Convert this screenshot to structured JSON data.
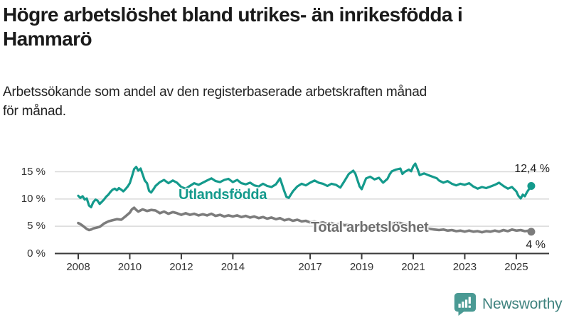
{
  "header": {
    "title_lines": [
      "Högre arbetslöshet bland utrikes- än inrikesfödda i",
      "Hammarö"
    ],
    "subtitle_lines": [
      "Arbetssökande som andel av den registerbaserade arbetskraften månad",
      "för månad."
    ]
  },
  "chart_data": {
    "type": "line",
    "title": "Högre arbetslöshet bland utrikes- än inrikesfödda i Hammarö",
    "subtitle": "Arbetssökande som andel av den registerbaserade arbetskraften månad för månad.",
    "xlabel": "",
    "ylabel": "",
    "grid": "horizontal",
    "legend_position": "inline-labels",
    "x_axis": {
      "ticks": [
        2008,
        2010,
        2012,
        2014,
        2017,
        2019,
        2021,
        2023,
        2025
      ],
      "tick_labels": [
        "2008",
        "2010",
        "2012",
        "2014",
        "2017",
        "2019",
        "2021",
        "2023",
        "2025"
      ],
      "range": [
        2007.1,
        2026.3
      ]
    },
    "y_axis": {
      "ticks": [
        0,
        5,
        10,
        15
      ],
      "tick_labels": [
        "0 %",
        "5 %",
        "10 %",
        "15 %"
      ],
      "range": [
        0,
        17.2
      ]
    },
    "series": [
      {
        "name": "Utlandsfödda",
        "color": "#149a8c",
        "stroke_width": 3.2,
        "end_label": "12,4 %",
        "end_value": 12.4,
        "points": [
          [
            2008.0,
            10.6
          ],
          [
            2008.08,
            10.2
          ],
          [
            2008.17,
            10.5
          ],
          [
            2008.25,
            9.9
          ],
          [
            2008.33,
            10.1
          ],
          [
            2008.42,
            8.8
          ],
          [
            2008.5,
            8.5
          ],
          [
            2008.58,
            9.4
          ],
          [
            2008.67,
            9.9
          ],
          [
            2008.75,
            9.7
          ],
          [
            2008.83,
            9.1
          ],
          [
            2008.92,
            9.5
          ],
          [
            2009.0,
            9.9
          ],
          [
            2009.08,
            10.4
          ],
          [
            2009.17,
            10.8
          ],
          [
            2009.25,
            11.3
          ],
          [
            2009.33,
            11.7
          ],
          [
            2009.42,
            11.9
          ],
          [
            2009.5,
            11.6
          ],
          [
            2009.58,
            12.0
          ],
          [
            2009.67,
            11.7
          ],
          [
            2009.75,
            11.4
          ],
          [
            2009.83,
            11.8
          ],
          [
            2009.92,
            12.3
          ],
          [
            2010.0,
            12.9
          ],
          [
            2010.08,
            14.1
          ],
          [
            2010.17,
            15.5
          ],
          [
            2010.25,
            15.9
          ],
          [
            2010.33,
            15.2
          ],
          [
            2010.42,
            15.6
          ],
          [
            2010.5,
            14.5
          ],
          [
            2010.58,
            13.4
          ],
          [
            2010.67,
            12.9
          ],
          [
            2010.75,
            11.5
          ],
          [
            2010.83,
            11.2
          ],
          [
            2010.92,
            11.8
          ],
          [
            2011.0,
            12.4
          ],
          [
            2011.17,
            13.1
          ],
          [
            2011.33,
            13.5
          ],
          [
            2011.5,
            12.9
          ],
          [
            2011.67,
            13.4
          ],
          [
            2011.83,
            13.0
          ],
          [
            2012.0,
            12.2
          ],
          [
            2012.17,
            11.9
          ],
          [
            2012.33,
            12.4
          ],
          [
            2012.5,
            12.9
          ],
          [
            2012.67,
            12.6
          ],
          [
            2012.83,
            13.0
          ],
          [
            2013.0,
            13.4
          ],
          [
            2013.17,
            13.8
          ],
          [
            2013.33,
            13.3
          ],
          [
            2013.5,
            13.1
          ],
          [
            2013.67,
            13.5
          ],
          [
            2013.83,
            13.7
          ],
          [
            2014.0,
            13.1
          ],
          [
            2014.17,
            13.5
          ],
          [
            2014.33,
            12.9
          ],
          [
            2014.5,
            12.7
          ],
          [
            2014.67,
            13.0
          ],
          [
            2014.83,
            12.5
          ],
          [
            2015.0,
            12.3
          ],
          [
            2015.17,
            12.8
          ],
          [
            2015.33,
            12.4
          ],
          [
            2015.5,
            12.2
          ],
          [
            2015.67,
            12.7
          ],
          [
            2015.83,
            13.8
          ],
          [
            2016.0,
            11.4
          ],
          [
            2016.08,
            10.4
          ],
          [
            2016.17,
            10.2
          ],
          [
            2016.33,
            11.4
          ],
          [
            2016.5,
            12.3
          ],
          [
            2016.67,
            12.8
          ],
          [
            2016.83,
            12.5
          ],
          [
            2017.0,
            13.0
          ],
          [
            2017.17,
            13.4
          ],
          [
            2017.33,
            13.0
          ],
          [
            2017.5,
            12.8
          ],
          [
            2017.67,
            12.4
          ],
          [
            2017.83,
            12.8
          ],
          [
            2018.0,
            12.6
          ],
          [
            2018.17,
            12.1
          ],
          [
            2018.33,
            13.3
          ],
          [
            2018.5,
            14.6
          ],
          [
            2018.67,
            15.2
          ],
          [
            2018.75,
            14.7
          ],
          [
            2018.92,
            12.3
          ],
          [
            2019.0,
            11.8
          ],
          [
            2019.17,
            13.8
          ],
          [
            2019.33,
            14.1
          ],
          [
            2019.5,
            13.6
          ],
          [
            2019.67,
            13.9
          ],
          [
            2019.83,
            13.0
          ],
          [
            2020.0,
            13.7
          ],
          [
            2020.08,
            14.5
          ],
          [
            2020.17,
            15.1
          ],
          [
            2020.33,
            15.4
          ],
          [
            2020.5,
            15.6
          ],
          [
            2020.58,
            14.6
          ],
          [
            2020.67,
            15.0
          ],
          [
            2020.83,
            15.4
          ],
          [
            2020.92,
            15.1
          ],
          [
            2021.0,
            16.0
          ],
          [
            2021.08,
            16.5
          ],
          [
            2021.17,
            15.5
          ],
          [
            2021.25,
            14.4
          ],
          [
            2021.42,
            14.7
          ],
          [
            2021.58,
            14.4
          ],
          [
            2021.75,
            14.1
          ],
          [
            2021.92,
            13.8
          ],
          [
            2022.0,
            13.4
          ],
          [
            2022.17,
            13.0
          ],
          [
            2022.33,
            13.3
          ],
          [
            2022.5,
            12.8
          ],
          [
            2022.67,
            12.5
          ],
          [
            2022.83,
            12.8
          ],
          [
            2023.0,
            12.6
          ],
          [
            2023.17,
            12.9
          ],
          [
            2023.33,
            12.3
          ],
          [
            2023.5,
            11.9
          ],
          [
            2023.67,
            12.2
          ],
          [
            2023.83,
            12.0
          ],
          [
            2024.0,
            12.3
          ],
          [
            2024.17,
            12.6
          ],
          [
            2024.33,
            13.0
          ],
          [
            2024.5,
            12.4
          ],
          [
            2024.67,
            11.9
          ],
          [
            2024.83,
            12.2
          ],
          [
            2025.0,
            11.4
          ],
          [
            2025.08,
            10.6
          ],
          [
            2025.17,
            10.1
          ],
          [
            2025.25,
            10.8
          ],
          [
            2025.33,
            10.5
          ],
          [
            2025.42,
            11.3
          ],
          [
            2025.58,
            12.4
          ]
        ]
      },
      {
        "name": "Total arbetslöshet",
        "color": "#7c7c7c",
        "stroke_width": 3.6,
        "end_label": "4 %",
        "end_value": 4.0,
        "points": [
          [
            2008.0,
            5.6
          ],
          [
            2008.08,
            5.4
          ],
          [
            2008.17,
            5.1
          ],
          [
            2008.25,
            4.8
          ],
          [
            2008.33,
            4.5
          ],
          [
            2008.42,
            4.3
          ],
          [
            2008.5,
            4.4
          ],
          [
            2008.58,
            4.6
          ],
          [
            2008.67,
            4.7
          ],
          [
            2008.83,
            4.9
          ],
          [
            2008.92,
            5.2
          ],
          [
            2009.0,
            5.5
          ],
          [
            2009.17,
            5.9
          ],
          [
            2009.33,
            6.1
          ],
          [
            2009.5,
            6.3
          ],
          [
            2009.67,
            6.2
          ],
          [
            2009.83,
            6.8
          ],
          [
            2010.0,
            7.5
          ],
          [
            2010.08,
            8.1
          ],
          [
            2010.17,
            8.4
          ],
          [
            2010.25,
            8.0
          ],
          [
            2010.33,
            7.7
          ],
          [
            2010.5,
            8.1
          ],
          [
            2010.67,
            7.8
          ],
          [
            2010.83,
            8.0
          ],
          [
            2011.0,
            7.9
          ],
          [
            2011.17,
            7.4
          ],
          [
            2011.33,
            7.7
          ],
          [
            2011.5,
            7.3
          ],
          [
            2011.67,
            7.6
          ],
          [
            2011.83,
            7.4
          ],
          [
            2012.0,
            7.1
          ],
          [
            2012.17,
            7.4
          ],
          [
            2012.33,
            7.1
          ],
          [
            2012.5,
            7.3
          ],
          [
            2012.67,
            7.0
          ],
          [
            2012.83,
            7.2
          ],
          [
            2013.0,
            7.0
          ],
          [
            2013.17,
            7.3
          ],
          [
            2013.33,
            6.9
          ],
          [
            2013.5,
            7.1
          ],
          [
            2013.67,
            6.8
          ],
          [
            2013.83,
            7.0
          ],
          [
            2014.0,
            6.8
          ],
          [
            2014.17,
            7.0
          ],
          [
            2014.33,
            6.7
          ],
          [
            2014.5,
            6.9
          ],
          [
            2014.67,
            6.6
          ],
          [
            2014.83,
            6.8
          ],
          [
            2015.0,
            6.5
          ],
          [
            2015.17,
            6.7
          ],
          [
            2015.33,
            6.4
          ],
          [
            2015.5,
            6.6
          ],
          [
            2015.67,
            6.3
          ],
          [
            2015.83,
            6.5
          ],
          [
            2016.0,
            6.1
          ],
          [
            2016.17,
            6.3
          ],
          [
            2016.33,
            6.0
          ],
          [
            2016.5,
            6.2
          ],
          [
            2016.67,
            5.9
          ],
          [
            2016.83,
            6.0
          ],
          [
            2017.0,
            5.7
          ],
          [
            2017.17,
            5.9
          ],
          [
            2017.33,
            5.6
          ],
          [
            2017.5,
            5.7
          ],
          [
            2017.67,
            5.4
          ],
          [
            2017.83,
            5.6
          ],
          [
            2018.0,
            5.3
          ],
          [
            2018.17,
            5.5
          ],
          [
            2018.33,
            5.2
          ],
          [
            2018.5,
            5.3
          ],
          [
            2018.67,
            5.1
          ],
          [
            2018.83,
            5.2
          ],
          [
            2019.0,
            5.0
          ],
          [
            2019.17,
            5.1
          ],
          [
            2019.33,
            4.9
          ],
          [
            2019.5,
            5.0
          ],
          [
            2019.67,
            4.8
          ],
          [
            2019.83,
            5.0
          ],
          [
            2020.0,
            5.2
          ],
          [
            2020.17,
            5.5
          ],
          [
            2020.33,
            5.7
          ],
          [
            2020.5,
            5.6
          ],
          [
            2020.67,
            5.4
          ],
          [
            2020.83,
            5.2
          ],
          [
            2021.0,
            5.0
          ],
          [
            2021.17,
            4.9
          ],
          [
            2021.33,
            4.7
          ],
          [
            2021.5,
            4.6
          ],
          [
            2021.67,
            4.5
          ],
          [
            2021.83,
            4.4
          ],
          [
            2022.0,
            4.3
          ],
          [
            2022.17,
            4.4
          ],
          [
            2022.33,
            4.2
          ],
          [
            2022.5,
            4.3
          ],
          [
            2022.67,
            4.1
          ],
          [
            2022.83,
            4.2
          ],
          [
            2023.0,
            4.0
          ],
          [
            2023.17,
            4.2
          ],
          [
            2023.33,
            4.0
          ],
          [
            2023.5,
            4.1
          ],
          [
            2023.67,
            3.9
          ],
          [
            2023.83,
            4.1
          ],
          [
            2024.0,
            4.0
          ],
          [
            2024.17,
            4.2
          ],
          [
            2024.33,
            4.0
          ],
          [
            2024.5,
            4.3
          ],
          [
            2024.67,
            4.1
          ],
          [
            2024.83,
            4.4
          ],
          [
            2025.0,
            4.2
          ],
          [
            2025.17,
            4.3
          ],
          [
            2025.33,
            4.1
          ],
          [
            2025.5,
            4.2
          ],
          [
            2025.58,
            4.0
          ]
        ]
      }
    ],
    "colors": {
      "accent_teal": "#149a8c",
      "series_gray": "#7c7c7c",
      "gridline": "#d9d9d9",
      "axis": "#3a3a3a",
      "brand_teal": "#4a9a94"
    }
  },
  "footer": {
    "brand": "Newsworthy"
  }
}
